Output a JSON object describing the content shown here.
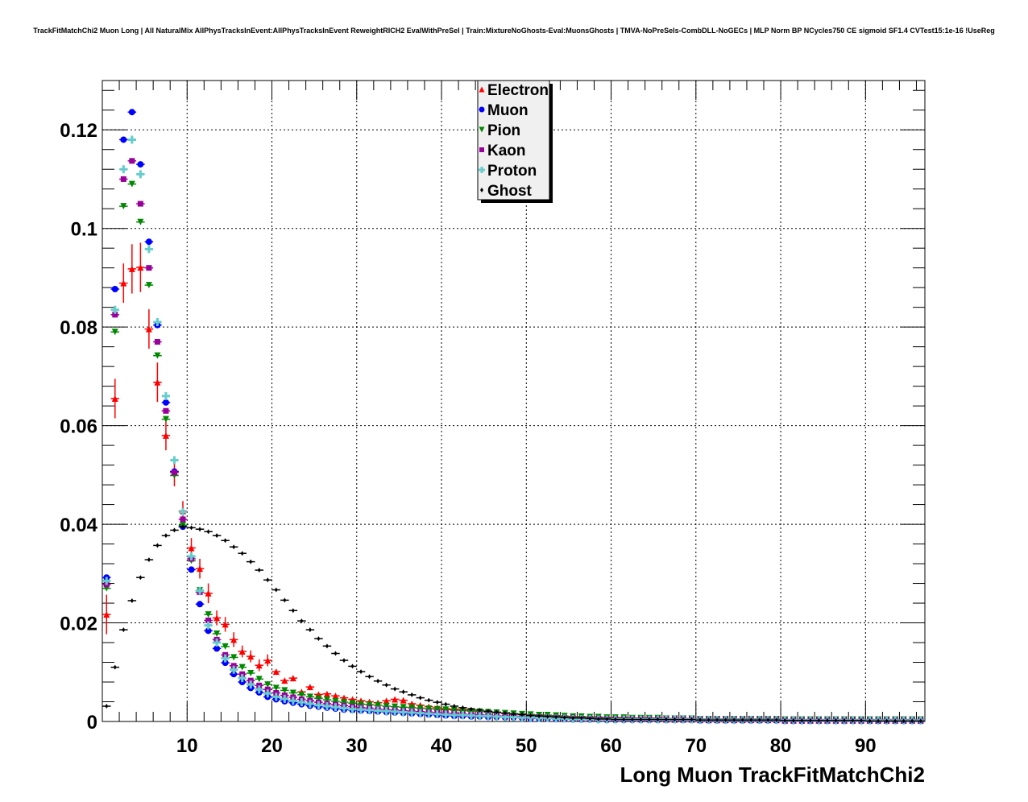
{
  "chart_data": {
    "type": "scatter",
    "title": "TrackFitMatchChi2 Muon Long | All NaturalMix AllPhysTracksInEvent:AllPhysTracksInEvent ReweightRICH2 EvalWithPreSel | Train:MixtureNoGhosts-Eval:MuonsGhosts | TMVA-NoPreSels-CombDLL-NoGECs | MLP Norm BP NCycles750 CE sigmoid SF1.4 CVTest15:1e-16 !UseReg",
    "xlabel": "Long Muon TrackFitMatchChi2",
    "ylabel": "",
    "xlim": [
      0,
      97
    ],
    "ylim": [
      0,
      0.13
    ],
    "grid": true,
    "legend_position": "top-center",
    "x_ticks": [
      "10",
      "20",
      "30",
      "40",
      "50",
      "60",
      "70",
      "80",
      "90"
    ],
    "x_tick_values": [
      10,
      20,
      30,
      40,
      50,
      60,
      70,
      80,
      90
    ],
    "y_ticks": [
      "0",
      "0.02",
      "0.04",
      "0.06",
      "0.08",
      "0.1",
      "0.12"
    ],
    "y_tick_values": [
      0,
      0.02,
      0.04,
      0.06,
      0.08,
      0.1,
      0.12
    ],
    "bin_start": 0.5,
    "bin_width": 1,
    "series": [
      {
        "name": "Electron",
        "color": "#ff0000",
        "marker": "triangle-up",
        "errors_first_bins": [
          0.004,
          0.004,
          0.004,
          0.005,
          0.005,
          0.004,
          0.004,
          0.003,
          0.003,
          0.002,
          0.002,
          0.002,
          0.002,
          0.0015,
          0.0015,
          0.0015,
          0.0012,
          0.0012,
          0.0012,
          0.0012
        ],
        "values": [
          0.0217,
          0.0655,
          0.0889,
          0.0918,
          0.0921,
          0.0796,
          0.0688,
          0.058,
          0.0507,
          0.0427,
          0.0352,
          0.031,
          0.026,
          0.021,
          0.0197,
          0.0166,
          0.0142,
          0.0132,
          0.0114,
          0.0124,
          0.0101,
          0.0083,
          0.0088,
          0.006,
          0.007,
          0.0055,
          0.0056,
          0.0052,
          0.0048,
          0.0045,
          0.0042,
          0.004,
          0.0038,
          0.0042,
          0.0045,
          0.0043,
          0.0036,
          0.0033,
          0.003,
          0.0028,
          0.0026,
          0.0025,
          0.0024,
          0.0022,
          0.002,
          0.0019,
          0.0018,
          0.0017,
          0.0016,
          0.0015,
          0.0014,
          0.0013,
          0.0012,
          0.0011,
          0.001,
          0.0009,
          0.0009,
          0.0008,
          0.0008,
          0.0007,
          0.0007,
          0.0006,
          0.0006,
          0.0005,
          0.0005,
          0.0005,
          0.0004,
          0.0004,
          0.0004,
          0.0004,
          0.0003,
          0.0003,
          0.0003,
          0.0003,
          0.0003,
          0.0003,
          0.0003,
          0.0003,
          0.0003,
          0.0003,
          0.0002,
          0.0002,
          0.0002,
          0.0002,
          0.0002,
          0.0002,
          0.0002,
          0.0002,
          0.0002,
          0.0002,
          0.0002,
          0.0002,
          0.0002,
          0.0002,
          0.0002,
          0.0002,
          0.0002
        ]
      },
      {
        "name": "Muon",
        "color": "#0000ff",
        "marker": "circle",
        "values": [
          0.0292,
          0.0877,
          0.118,
          0.1236,
          0.113,
          0.0973,
          0.0804,
          0.0647,
          0.0507,
          0.0395,
          0.0308,
          0.0238,
          0.0184,
          0.0148,
          0.0119,
          0.0096,
          0.008,
          0.0068,
          0.0059,
          0.005,
          0.0045,
          0.0041,
          0.0038,
          0.0035,
          0.0032,
          0.003,
          0.0028,
          0.0026,
          0.0024,
          0.0023,
          0.0022,
          0.0021,
          0.002,
          0.0019,
          0.0018,
          0.0017,
          0.0016,
          0.0015,
          0.0014,
          0.0013,
          0.0012,
          0.0011,
          0.0011,
          0.001,
          0.001,
          0.0009,
          0.0009,
          0.0008,
          0.0008,
          0.0007,
          0.0006,
          0.0006,
          0.0006,
          0.0005,
          0.0005,
          0.0005,
          0.0004,
          0.0004,
          0.0004,
          0.0003,
          0.0003,
          0.0003,
          0.0003,
          0.0003,
          0.0003,
          0.0003,
          0.0003,
          0.0003,
          0.0003,
          0.0003,
          0.0002,
          0.0002,
          0.0002,
          0.0002,
          0.0002,
          0.0002,
          0.0002,
          0.0002,
          0.0002,
          0.0002,
          0.0001,
          0.0001,
          0.0001,
          0.0001,
          0.0001,
          0.0001,
          0.0001,
          0.0001,
          0.0001,
          0.0001,
          0.0001,
          0.0001,
          0.0001,
          0.0001,
          0.0001,
          0.0001,
          0.0001
        ]
      },
      {
        "name": "Pion",
        "color": "#008800",
        "marker": "triangle-down",
        "values": [
          0.027,
          0.079,
          0.1045,
          0.109,
          0.1013,
          0.0885,
          0.0742,
          0.0613,
          0.0499,
          0.0398,
          0.0326,
          0.0266,
          0.0217,
          0.0178,
          0.0152,
          0.013,
          0.011,
          0.0098,
          0.0086,
          0.0075,
          0.0068,
          0.0063,
          0.0058,
          0.0054,
          0.005,
          0.0047,
          0.0044,
          0.0041,
          0.0039,
          0.0037,
          0.0035,
          0.0034,
          0.0033,
          0.0031,
          0.003,
          0.0029,
          0.0028,
          0.0027,
          0.0026,
          0.0025,
          0.0024,
          0.0023,
          0.0022,
          0.0021,
          0.002,
          0.0019,
          0.0018,
          0.0017,
          0.0016,
          0.0015,
          0.0014,
          0.0013,
          0.0013,
          0.0012,
          0.0011,
          0.001,
          0.001,
          0.0009,
          0.0009,
          0.0008,
          0.0008,
          0.0008,
          0.0007,
          0.0007,
          0.0007,
          0.0007,
          0.0006,
          0.0006,
          0.0006,
          0.0006,
          0.0005,
          0.0005,
          0.0005,
          0.0005,
          0.0005,
          0.0005,
          0.0005,
          0.0005,
          0.0005,
          0.0005,
          0.0004,
          0.0004,
          0.0004,
          0.0004,
          0.0004,
          0.0004,
          0.0004,
          0.0004,
          0.0004,
          0.0004,
          0.0004,
          0.0004,
          0.0004,
          0.0004,
          0.0004,
          0.0004,
          0.0004
        ]
      },
      {
        "name": "Kaon",
        "color": "#990099",
        "marker": "square",
        "values": [
          0.0278,
          0.0825,
          0.11,
          0.1137,
          0.105,
          0.092,
          0.077,
          0.063,
          0.0505,
          0.041,
          0.033,
          0.0262,
          0.0205,
          0.0166,
          0.0135,
          0.0113,
          0.0096,
          0.0083,
          0.0073,
          0.0065,
          0.0058,
          0.0053,
          0.0049,
          0.0045,
          0.0042,
          0.0039,
          0.0036,
          0.0034,
          0.0032,
          0.003,
          0.0028,
          0.0027,
          0.0025,
          0.0024,
          0.0023,
          0.0022,
          0.0021,
          0.002,
          0.0019,
          0.0018,
          0.0017,
          0.0016,
          0.0015,
          0.0014,
          0.0014,
          0.0013,
          0.0012,
          0.0011,
          0.0011,
          0.001,
          0.0009,
          0.0009,
          0.0008,
          0.0008,
          0.0007,
          0.0007,
          0.0006,
          0.0006,
          0.0006,
          0.0005,
          0.0005,
          0.0005,
          0.0005,
          0.0005,
          0.0005,
          0.0005,
          0.0005,
          0.0005,
          0.0005,
          0.0005,
          0.0004,
          0.0004,
          0.0004,
          0.0004,
          0.0004,
          0.0004,
          0.0004,
          0.0004,
          0.0004,
          0.0004,
          0.0003,
          0.0003,
          0.0003,
          0.0003,
          0.0003,
          0.0003,
          0.0003,
          0.0003,
          0.0003,
          0.0003,
          0.0003,
          0.0003,
          0.0003,
          0.0003,
          0.0003,
          0.0003,
          0.0003
        ]
      },
      {
        "name": "Proton",
        "color": "#66cccc",
        "marker": "cross",
        "values": [
          0.0285,
          0.0835,
          0.112,
          0.118,
          0.111,
          0.0958,
          0.081,
          0.066,
          0.053,
          0.0425,
          0.0335,
          0.0265,
          0.0195,
          0.016,
          0.0128,
          0.0105,
          0.0088,
          0.0075,
          0.0065,
          0.0057,
          0.005,
          0.0046,
          0.0042,
          0.0039,
          0.0036,
          0.0033,
          0.0031,
          0.0029,
          0.0027,
          0.0025,
          0.0024,
          0.0023,
          0.0022,
          0.0021,
          0.002,
          0.0019,
          0.0018,
          0.0017,
          0.0016,
          0.0015,
          0.0014,
          0.0013,
          0.0013,
          0.0012,
          0.0011,
          0.0011,
          0.001,
          0.0009,
          0.0009,
          0.0008,
          0.0008,
          0.0007,
          0.0007,
          0.0006,
          0.0006,
          0.0005,
          0.0005,
          0.0005,
          0.0004,
          0.0004,
          0.0004,
          0.0004,
          0.0004,
          0.0004,
          0.0004,
          0.0004,
          0.0004,
          0.0004,
          0.0004,
          0.0004,
          0.0003,
          0.0003,
          0.0003,
          0.0003,
          0.0003,
          0.0003,
          0.0003,
          0.0003,
          0.0003,
          0.0003,
          0.0002,
          0.0002,
          0.0002,
          0.0002,
          0.0002,
          0.0002,
          0.0002,
          0.0002,
          0.0002,
          0.0002,
          0.0002,
          0.0002,
          0.0002,
          0.0002,
          0.0002,
          0.0002,
          0.0002
        ]
      },
      {
        "name": "Ghost",
        "color": "#000000",
        "marker": "diamond",
        "values": [
          0.0031,
          0.011,
          0.0186,
          0.0245,
          0.0292,
          0.0328,
          0.0357,
          0.0377,
          0.0388,
          0.0395,
          0.0393,
          0.039,
          0.0385,
          0.0377,
          0.0367,
          0.0354,
          0.0341,
          0.0324,
          0.0307,
          0.0287,
          0.0267,
          0.0246,
          0.0225,
          0.0204,
          0.0186,
          0.0168,
          0.0153,
          0.0138,
          0.0124,
          0.0112,
          0.0101,
          0.0091,
          0.0082,
          0.0074,
          0.0066,
          0.006,
          0.0054,
          0.0048,
          0.0043,
          0.0039,
          0.0035,
          0.0031,
          0.0028,
          0.0025,
          0.0023,
          0.0021,
          0.0019,
          0.0017,
          0.0015,
          0.0014,
          0.0012,
          0.0011,
          0.001,
          0.0009,
          0.0008,
          0.0007,
          0.0007,
          0.0006,
          0.0005,
          0.0005,
          0.0004,
          0.0004,
          0.0004,
          0.0004,
          0.0004,
          0.0004,
          0.0004,
          0.0004,
          0.0004,
          0.0004,
          0.0003,
          0.0003,
          0.0003,
          0.0003,
          0.0003,
          0.0003,
          0.0003,
          0.0003,
          0.0003,
          0.0003,
          0.0002,
          0.0002,
          0.0002,
          0.0002,
          0.0002,
          0.0002,
          0.0002,
          0.0002,
          0.0002,
          0.0002,
          0.0001,
          0.0001,
          0.0001,
          0.0001,
          0.0001,
          0.0001,
          0.0001
        ]
      }
    ]
  }
}
